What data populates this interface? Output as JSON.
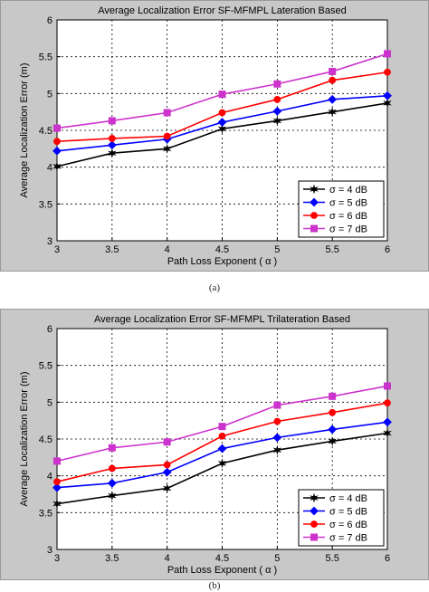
{
  "captions": [
    "(a)",
    "(b)"
  ],
  "chart_data": [
    {
      "type": "line",
      "title": "Average Localization Error SF-MFMPL Lateration Based",
      "xlabel": "Path Loss Exponent ( α )",
      "ylabel": "Average Localization Error (m)",
      "x": [
        3,
        3.5,
        4,
        4.5,
        5,
        5.5,
        6
      ],
      "xticks": [
        "3",
        "3.5",
        "4",
        "4.5",
        "5",
        "5.5",
        "6"
      ],
      "yticks": [
        "3",
        "3.5",
        "4",
        "4.5",
        "5",
        "5.5",
        "6"
      ],
      "xlim": [
        3,
        6
      ],
      "ylim": [
        3,
        6
      ],
      "grid": true,
      "legend_position": "bottom-right",
      "series": [
        {
          "name": "σ = 4 dB",
          "color": "#000000",
          "marker": "star",
          "values": [
            4.01,
            4.19,
            4.25,
            4.52,
            4.63,
            4.75,
            4.87
          ]
        },
        {
          "name": "σ = 5 dB",
          "color": "#0000ff",
          "marker": "diamond",
          "values": [
            4.22,
            4.3,
            4.38,
            4.61,
            4.76,
            4.92,
            4.97
          ]
        },
        {
          "name": "σ = 6 dB",
          "color": "#ff0000",
          "marker": "circle",
          "values": [
            4.35,
            4.39,
            4.42,
            4.74,
            4.92,
            5.18,
            5.29
          ]
        },
        {
          "name": "σ = 7 dB",
          "color": "#cc33cc",
          "marker": "square",
          "values": [
            4.53,
            4.63,
            4.74,
            4.99,
            5.13,
            5.3,
            5.54
          ]
        }
      ]
    },
    {
      "type": "line",
      "title": "Average Localization Error SF-MFMPL Trilateration Based",
      "xlabel": "Path Loss Exponent ( α )",
      "ylabel": "Average Localization Error (m)",
      "x": [
        3,
        3.5,
        4,
        4.5,
        5,
        5.5,
        6
      ],
      "xticks": [
        "3",
        "3.5",
        "4",
        "4.5",
        "5",
        "5.5",
        "6"
      ],
      "yticks": [
        "3",
        "3.5",
        "4",
        "4.5",
        "5",
        "5.5",
        "6"
      ],
      "xlim": [
        3,
        6
      ],
      "ylim": [
        3,
        6
      ],
      "grid": true,
      "legend_position": "bottom-right",
      "series": [
        {
          "name": "σ = 4 dB",
          "color": "#000000",
          "marker": "star",
          "values": [
            3.62,
            3.73,
            3.83,
            4.17,
            4.35,
            4.47,
            4.58
          ]
        },
        {
          "name": "σ = 5 dB",
          "color": "#0000ff",
          "marker": "diamond",
          "values": [
            3.84,
            3.9,
            4.05,
            4.37,
            4.52,
            4.63,
            4.73
          ]
        },
        {
          "name": "σ = 6 dB",
          "color": "#ff0000",
          "marker": "circle",
          "values": [
            3.92,
            4.1,
            4.15,
            4.54,
            4.74,
            4.86,
            4.99
          ]
        },
        {
          "name": "σ = 7 dB",
          "color": "#cc33cc",
          "marker": "square",
          "values": [
            4.2,
            4.38,
            4.46,
            4.67,
            4.96,
            5.08,
            5.22
          ]
        }
      ]
    }
  ]
}
